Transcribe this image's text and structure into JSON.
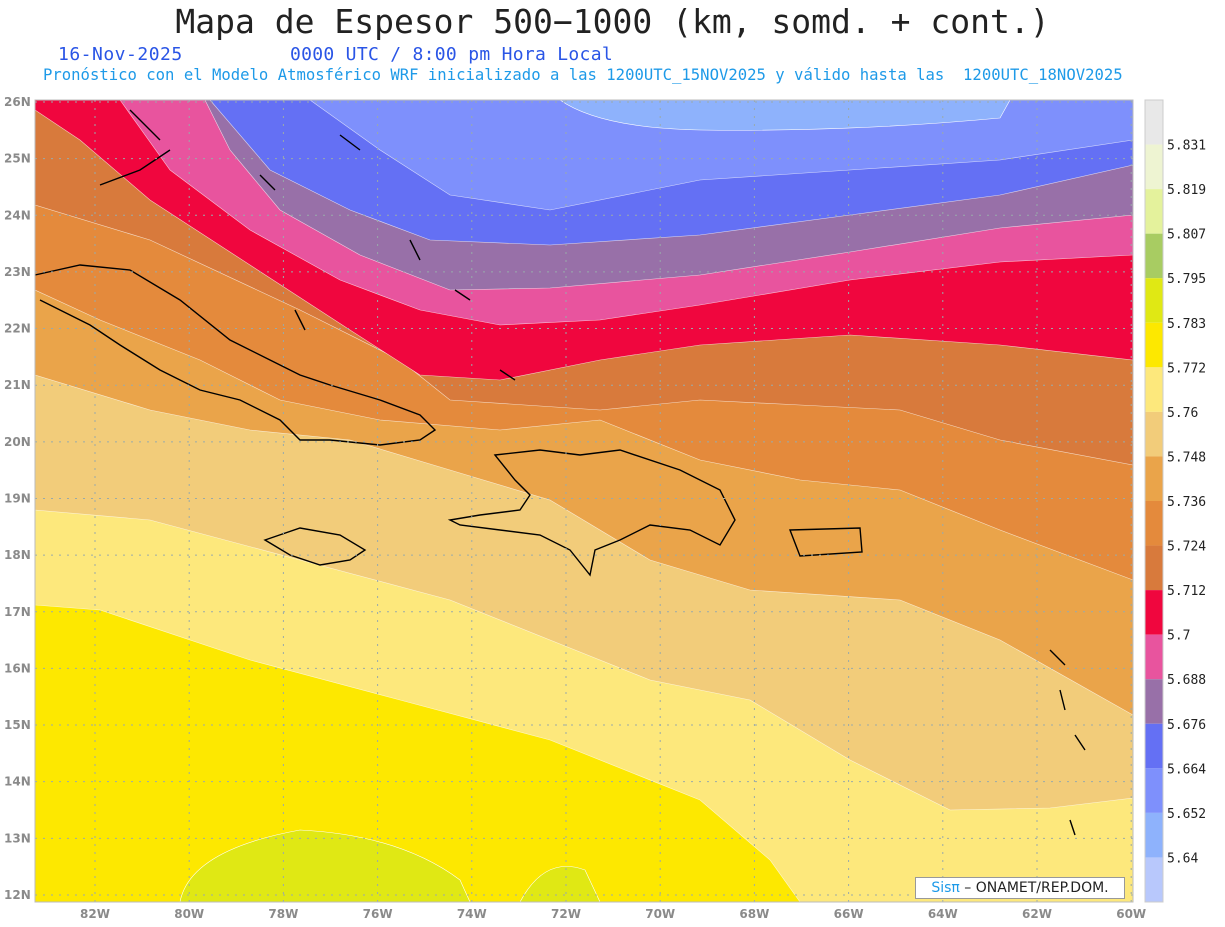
{
  "header": {
    "title": "Mapa de Espesor 500−1000 (km, somd. + cont.)",
    "date": "16-Nov-2025",
    "time": "0000 UTC / 8:00 pm Hora Local",
    "subtitle": "Pronóstico con el Modelo Atmosférico WRF inicializado a las 1200UTC_15NOV2025 y válido hasta las  1200UTC_18NOV2025"
  },
  "axes": {
    "lat_labels": [
      "26N",
      "25N",
      "24N",
      "23N",
      "22N",
      "21N",
      "20N",
      "19N",
      "18N",
      "17N",
      "16N",
      "15N",
      "14N",
      "13N",
      "12N"
    ],
    "lon_labels": [
      "82W",
      "80W",
      "78W",
      "76W",
      "74W",
      "72W",
      "70W",
      "68W",
      "66W",
      "64W",
      "62W",
      "60W"
    ]
  },
  "colorbar": {
    "labels": [
      "5.831",
      "5.819",
      "5.807",
      "5.795",
      "5.783",
      "5.772",
      "5.76",
      "5.748",
      "5.736",
      "5.724",
      "5.712",
      "5.7",
      "5.688",
      "5.676",
      "5.664",
      "5.652",
      "5.64"
    ],
    "colors": [
      "#e8e8e8",
      "#eef4d2",
      "#e4f29c",
      "#a8cc62",
      "#e0e814",
      "#fde800",
      "#fde87c",
      "#f2cc7a",
      "#eaa44a",
      "#e48a3c",
      "#d87a3c",
      "#f0063e",
      "#e8549e",
      "#9870a8",
      "#6470f4",
      "#7e90fc",
      "#8eb2fc",
      "#b8c8fc"
    ]
  },
  "credit": {
    "brand": "Sisπ",
    "text": " – ONAMET/REP.DOM."
  }
}
